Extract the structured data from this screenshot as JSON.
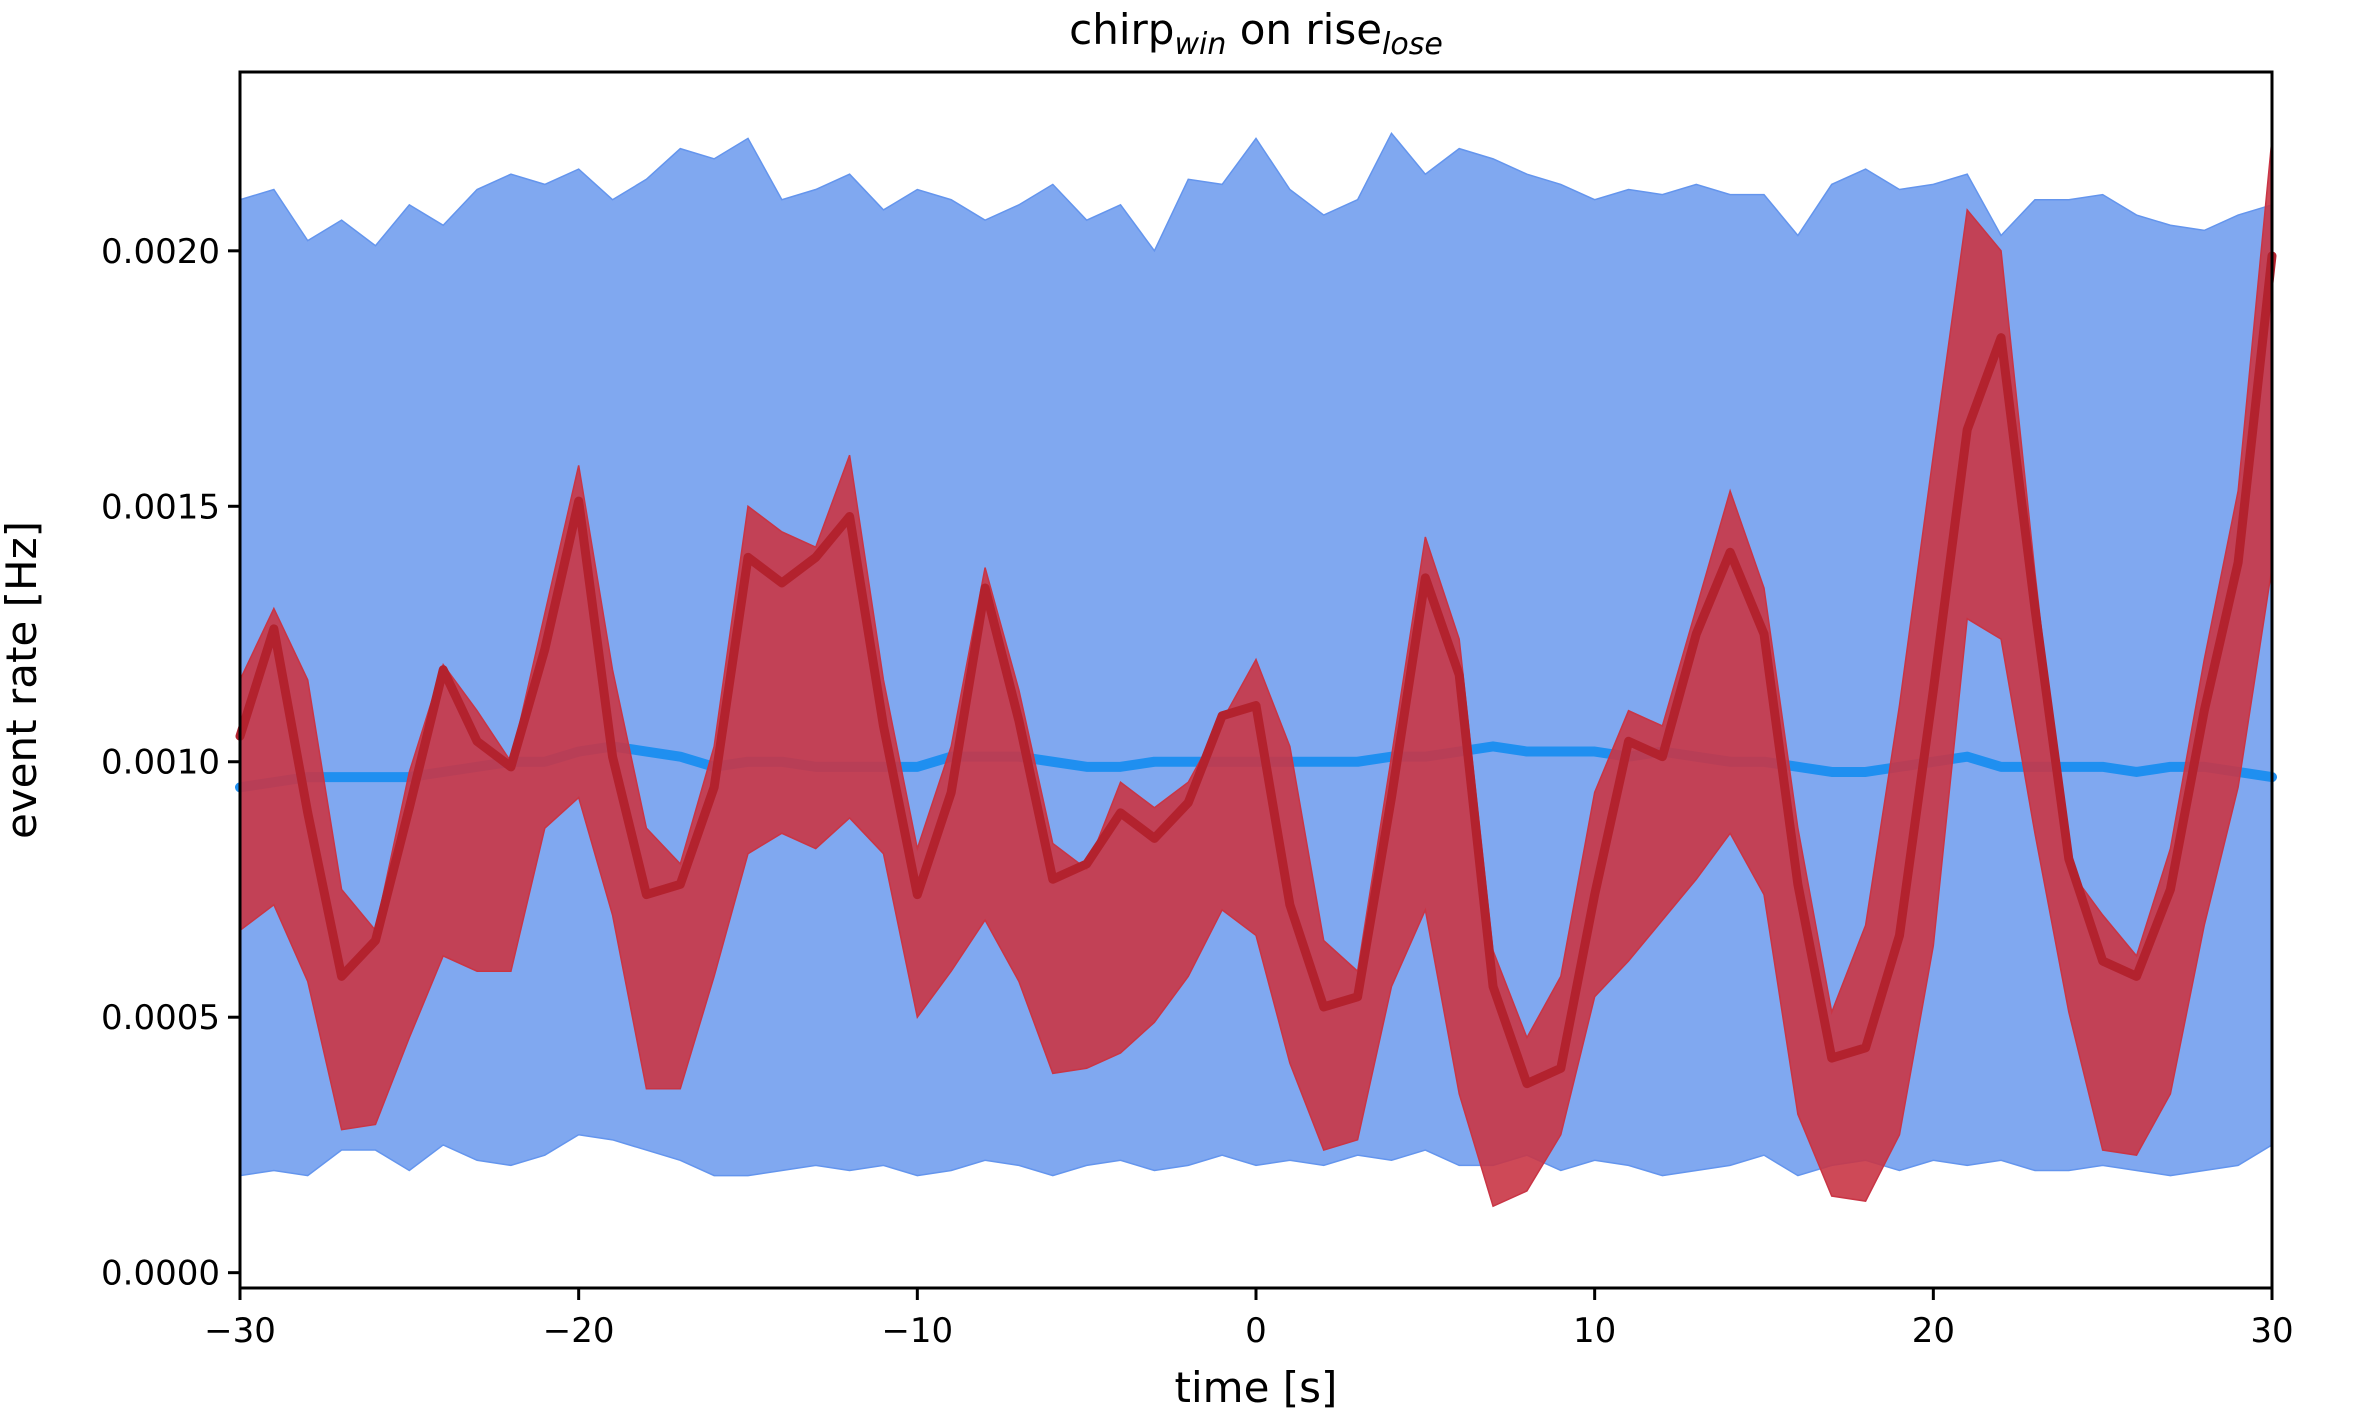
{
  "chart_data": {
    "type": "line",
    "title": {
      "base1": "chirp",
      "sub1": "win",
      "mid": " on rise",
      "sub2": "lose"
    },
    "xlabel": "time [s]",
    "ylabel": "event rate [Hz]",
    "xlim": [
      -30,
      30
    ],
    "ylim": [
      -3e-05,
      0.00235
    ],
    "xticks": [
      -30,
      -20,
      -10,
      0,
      10,
      20,
      30
    ],
    "xtick_labels": [
      "−30",
      "−20",
      "−10",
      "0",
      "10",
      "20",
      "30"
    ],
    "yticks": [
      0.0,
      0.0005,
      0.001,
      0.0015,
      0.002
    ],
    "ytick_labels": [
      "0.0000",
      "0.0005",
      "0.0010",
      "0.0015",
      "0.0020"
    ],
    "grid": false,
    "legend": "none",
    "series": [
      {
        "role": "control-band",
        "color": "#6495ed",
        "x": [
          -30,
          -29,
          -28,
          -27,
          -26,
          -25,
          -24,
          -23,
          -22,
          -21,
          -20,
          -19,
          -18,
          -17,
          -16,
          -15,
          -14,
          -13,
          -12,
          -11,
          -10,
          -9,
          -8,
          -7,
          -6,
          -5,
          -4,
          -3,
          -2,
          -1,
          0,
          1,
          2,
          3,
          4,
          5,
          6,
          7,
          8,
          9,
          10,
          11,
          12,
          13,
          14,
          15,
          16,
          17,
          18,
          19,
          20,
          21,
          22,
          23,
          24,
          25,
          26,
          27,
          28,
          29,
          30
        ],
        "lower": [
          0.00019,
          0.0002,
          0.00019,
          0.00024,
          0.00024,
          0.0002,
          0.00025,
          0.00022,
          0.00021,
          0.00023,
          0.00027,
          0.00026,
          0.00024,
          0.00022,
          0.00019,
          0.00019,
          0.0002,
          0.00021,
          0.0002,
          0.00021,
          0.00019,
          0.0002,
          0.00022,
          0.00021,
          0.00019,
          0.00021,
          0.00022,
          0.0002,
          0.00021,
          0.00023,
          0.00021,
          0.00022,
          0.00021,
          0.00023,
          0.00022,
          0.00024,
          0.00021,
          0.00021,
          0.00023,
          0.0002,
          0.00022,
          0.00021,
          0.00019,
          0.0002,
          0.00021,
          0.00023,
          0.00019,
          0.00021,
          0.00022,
          0.0002,
          0.00022,
          0.00021,
          0.00022,
          0.0002,
          0.0002,
          0.00021,
          0.0002,
          0.00019,
          0.0002,
          0.00021,
          0.00025
        ],
        "upper": [
          0.0021,
          0.00212,
          0.00202,
          0.00206,
          0.00201,
          0.00209,
          0.00205,
          0.00212,
          0.00215,
          0.00213,
          0.00216,
          0.0021,
          0.00214,
          0.0022,
          0.00218,
          0.00222,
          0.0021,
          0.00212,
          0.00215,
          0.00208,
          0.00212,
          0.0021,
          0.00206,
          0.00209,
          0.00213,
          0.00206,
          0.00209,
          0.002,
          0.00214,
          0.00213,
          0.00222,
          0.00212,
          0.00207,
          0.0021,
          0.00223,
          0.00215,
          0.0022,
          0.00218,
          0.00215,
          0.00213,
          0.0021,
          0.00212,
          0.00211,
          0.00213,
          0.00211,
          0.00211,
          0.00203,
          0.00213,
          0.00216,
          0.00212,
          0.00213,
          0.00215,
          0.00203,
          0.0021,
          0.0021,
          0.00211,
          0.00207,
          0.00205,
          0.00204,
          0.00207,
          0.00209
        ]
      },
      {
        "role": "control-median",
        "color": "#1f8ff0",
        "x": [
          -30,
          -29,
          -28,
          -27,
          -26,
          -25,
          -24,
          -23,
          -22,
          -21,
          -20,
          -19,
          -18,
          -17,
          -16,
          -15,
          -14,
          -13,
          -12,
          -11,
          -10,
          -9,
          -8,
          -7,
          -6,
          -5,
          -4,
          -3,
          -2,
          -1,
          0,
          1,
          2,
          3,
          4,
          5,
          6,
          7,
          8,
          9,
          10,
          11,
          12,
          13,
          14,
          15,
          16,
          17,
          18,
          19,
          20,
          21,
          22,
          23,
          24,
          25,
          26,
          27,
          28,
          29,
          30
        ],
        "values": [
          0.00095,
          0.00096,
          0.00097,
          0.00097,
          0.00097,
          0.00097,
          0.00098,
          0.00099,
          0.001,
          0.001,
          0.00102,
          0.00103,
          0.00102,
          0.00101,
          0.00099,
          0.001,
          0.001,
          0.00099,
          0.00099,
          0.00099,
          0.00099,
          0.00101,
          0.00101,
          0.00101,
          0.001,
          0.00099,
          0.00099,
          0.001,
          0.001,
          0.001,
          0.001,
          0.001,
          0.001,
          0.001,
          0.00101,
          0.00101,
          0.00102,
          0.00103,
          0.00102,
          0.00102,
          0.00102,
          0.00101,
          0.00102,
          0.00101,
          0.001,
          0.001,
          0.00099,
          0.00098,
          0.00098,
          0.00099,
          0.001,
          0.00101,
          0.00099,
          0.00099,
          0.00099,
          0.00099,
          0.00098,
          0.00099,
          0.00099,
          0.00098,
          0.00097
        ]
      },
      {
        "role": "event-band",
        "color": "#c93545",
        "x": [
          -30,
          -29,
          -28,
          -27,
          -26,
          -25,
          -24,
          -23,
          -22,
          -21,
          -20,
          -19,
          -18,
          -17,
          -16,
          -15,
          -14,
          -13,
          -12,
          -11,
          -10,
          -9,
          -8,
          -7,
          -6,
          -5,
          -4,
          -3,
          -2,
          -1,
          0,
          1,
          2,
          3,
          4,
          5,
          6,
          7,
          8,
          9,
          10,
          11,
          12,
          13,
          14,
          15,
          16,
          17,
          18,
          19,
          20,
          21,
          22,
          23,
          24,
          25,
          26,
          27,
          28,
          29,
          30
        ],
        "lower": [
          0.00067,
          0.00072,
          0.00057,
          0.00028,
          0.00029,
          0.00046,
          0.00062,
          0.00059,
          0.00059,
          0.00087,
          0.00093,
          0.0007,
          0.00036,
          0.00036,
          0.00058,
          0.00082,
          0.00086,
          0.00083,
          0.00089,
          0.00082,
          0.0005,
          0.00059,
          0.00069,
          0.00057,
          0.00039,
          0.0004,
          0.00043,
          0.00049,
          0.00058,
          0.00071,
          0.00066,
          0.00041,
          0.00024,
          0.00026,
          0.00056,
          0.00071,
          0.00035,
          0.00013,
          0.00016,
          0.00027,
          0.00054,
          0.00061,
          0.00069,
          0.00077,
          0.00086,
          0.00074,
          0.00031,
          0.00015,
          0.00014,
          0.00027,
          0.00064,
          0.00128,
          0.00124,
          0.00086,
          0.00051,
          0.00024,
          0.00023,
          0.00035,
          0.00068,
          0.00095,
          0.00138
        ],
        "upper": [
          0.00116,
          0.0013,
          0.00116,
          0.00075,
          0.00067,
          0.00098,
          0.00119,
          0.0011,
          0.001,
          0.00129,
          0.00158,
          0.00118,
          0.00087,
          0.0008,
          0.00103,
          0.0015,
          0.00145,
          0.00142,
          0.0016,
          0.00116,
          0.00083,
          0.00103,
          0.00138,
          0.00114,
          0.00084,
          0.00079,
          0.00096,
          0.00091,
          0.00096,
          0.00108,
          0.0012,
          0.00103,
          0.00065,
          0.00059,
          0.00101,
          0.00144,
          0.00124,
          0.00063,
          0.00046,
          0.00058,
          0.00094,
          0.0011,
          0.00107,
          0.0013,
          0.00153,
          0.00134,
          0.00087,
          0.00051,
          0.00068,
          0.00111,
          0.0016,
          0.00208,
          0.002,
          0.00137,
          0.00079,
          0.0007,
          0.00062,
          0.00083,
          0.0012,
          0.00153,
          0.00222
        ]
      },
      {
        "role": "event-median",
        "color": "#b3222e",
        "x": [
          -30,
          -29,
          -28,
          -27,
          -26,
          -25,
          -24,
          -23,
          -22,
          -21,
          -20,
          -19,
          -18,
          -17,
          -16,
          -15,
          -14,
          -13,
          -12,
          -11,
          -10,
          -9,
          -8,
          -7,
          -6,
          -5,
          -4,
          -3,
          -2,
          -1,
          0,
          1,
          2,
          3,
          4,
          5,
          6,
          7,
          8,
          9,
          10,
          11,
          12,
          13,
          14,
          15,
          16,
          17,
          18,
          19,
          20,
          21,
          22,
          23,
          24,
          25,
          26,
          27,
          28,
          29,
          30
        ],
        "values": [
          0.00105,
          0.00126,
          0.0009,
          0.00058,
          0.00065,
          0.00091,
          0.00118,
          0.00104,
          0.00099,
          0.00122,
          0.00151,
          0.00101,
          0.00074,
          0.00076,
          0.00095,
          0.0014,
          0.00135,
          0.0014,
          0.00148,
          0.00107,
          0.00074,
          0.00094,
          0.00134,
          0.00108,
          0.00077,
          0.0008,
          0.0009,
          0.00085,
          0.00092,
          0.00109,
          0.00111,
          0.00072,
          0.00052,
          0.00054,
          0.00093,
          0.00136,
          0.00117,
          0.00056,
          0.00037,
          0.0004,
          0.00074,
          0.00104,
          0.00101,
          0.00125,
          0.00141,
          0.00125,
          0.00076,
          0.00042,
          0.00044,
          0.00066,
          0.00114,
          0.00165,
          0.00183,
          0.0013,
          0.00081,
          0.00061,
          0.00058,
          0.00075,
          0.0011,
          0.00139,
          0.00199
        ]
      }
    ]
  }
}
